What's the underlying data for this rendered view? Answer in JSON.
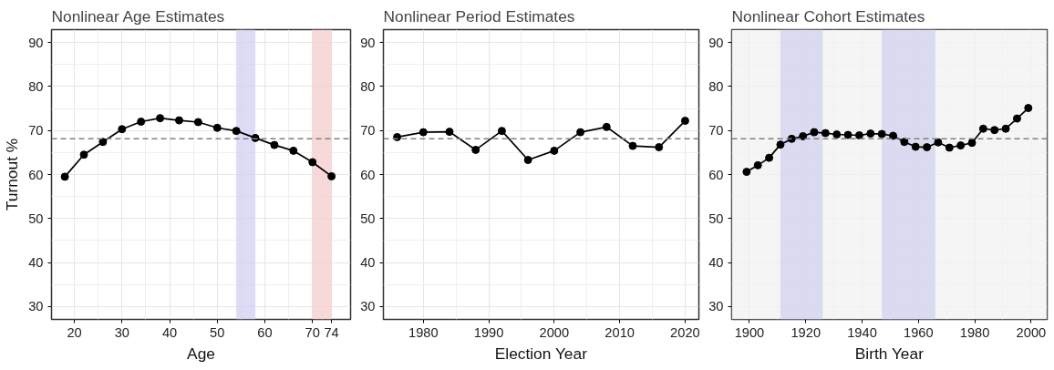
{
  "chart_data": [
    {
      "type": "line",
      "title": "Nonlinear Age Estimates",
      "xlabel": "Age",
      "ylabel": "Turnout %",
      "x": [
        18,
        22,
        26,
        30,
        34,
        38,
        42,
        46,
        50,
        54,
        58,
        62,
        66,
        70,
        74
      ],
      "series": [
        {
          "color": "#000000",
          "values": [
            59.5,
            64.5,
            67.4,
            70.3,
            72.0,
            72.8,
            72.3,
            71.9,
            70.6,
            69.9,
            68.3,
            66.7,
            65.4,
            62.8,
            59.6
          ]
        }
      ],
      "xlim": [
        15.2,
        78
      ],
      "xticks": [
        20,
        30,
        40,
        50,
        60,
        70,
        74
      ],
      "ylim": [
        27.1,
        92.9
      ],
      "yticks": [
        30,
        40,
        50,
        60,
        70,
        80,
        90
      ],
      "ref_lines": [
        {
          "axis": "y",
          "value": 68.1,
          "color": "#808080",
          "line_style": "dashed"
        }
      ],
      "bands": [
        {
          "axis": "x",
          "from": 54,
          "to": 58,
          "color": "#d0d0f4"
        },
        {
          "axis": "x",
          "from": 70,
          "to": 74,
          "color": "#f4cccc"
        }
      ],
      "grid": true,
      "marker": "circle",
      "line_style": "solid"
    },
    {
      "type": "line",
      "title": "Nonlinear Period Estimates",
      "xlabel": "Election Year",
      "x": [
        1976,
        1980,
        1984,
        1988,
        1992,
        1996,
        2000,
        2004,
        2008,
        2012,
        2016,
        2020
      ],
      "series": [
        {
          "color": "#000000",
          "values": [
            68.5,
            69.6,
            69.7,
            65.6,
            69.9,
            63.3,
            65.4,
            69.6,
            70.8,
            66.5,
            66.2,
            72.2
          ]
        }
      ],
      "xlim": [
        1973.9,
        2022.1
      ],
      "xticks": [
        1980,
        1990,
        2000,
        2010,
        2020
      ],
      "ylim": [
        27.1,
        92.9
      ],
      "yticks": [
        30,
        40,
        50,
        60,
        70,
        80,
        90
      ],
      "ref_lines": [
        {
          "axis": "y",
          "value": 68.1,
          "color": "#808080",
          "line_style": "dashed"
        }
      ],
      "grid": true,
      "marker": "circle",
      "line_style": "solid"
    },
    {
      "type": "line",
      "title": "Nonlinear Cohort Estimates",
      "xlabel": "Birth Year",
      "x": [
        1899,
        1903,
        1907,
        1911,
        1915,
        1919,
        1923,
        1927,
        1931,
        1935,
        1939,
        1943,
        1947,
        1951,
        1955,
        1959,
        1963,
        1967,
        1971,
        1975,
        1979,
        1983,
        1987,
        1991,
        1995,
        1999
      ],
      "series": [
        {
          "color": "#000000",
          "values": [
            60.6,
            62.1,
            63.8,
            66.8,
            68.1,
            68.7,
            69.6,
            69.4,
            69.1,
            69.0,
            68.9,
            69.3,
            69.2,
            68.8,
            67.4,
            66.3,
            66.2,
            67.3,
            66.1,
            66.6,
            67.2,
            70.4,
            70.1,
            70.4,
            72.7,
            75.1
          ]
        }
      ],
      "xlim": [
        1893.7,
        2005.7
      ],
      "xticks": [
        1900,
        1920,
        1940,
        1960,
        1980,
        2000
      ],
      "ylim": [
        27.1,
        92.9
      ],
      "yticks": [
        30,
        40,
        50,
        60,
        70,
        80,
        90
      ],
      "ref_lines": [
        {
          "axis": "y",
          "value": 68.1,
          "color": "#808080",
          "line_style": "dashed"
        }
      ],
      "bands": [
        {
          "axis": "x",
          "from": 1893.7,
          "to": 2005.7,
          "color": "#f2f2f2"
        },
        {
          "axis": "x",
          "from": 1911,
          "to": 1926,
          "color": "#d0d0ee"
        },
        {
          "axis": "x",
          "from": 1947,
          "to": 1966,
          "color": "#d0d0ee"
        }
      ],
      "grid": true,
      "marker": "circle",
      "line_style": "solid"
    }
  ]
}
